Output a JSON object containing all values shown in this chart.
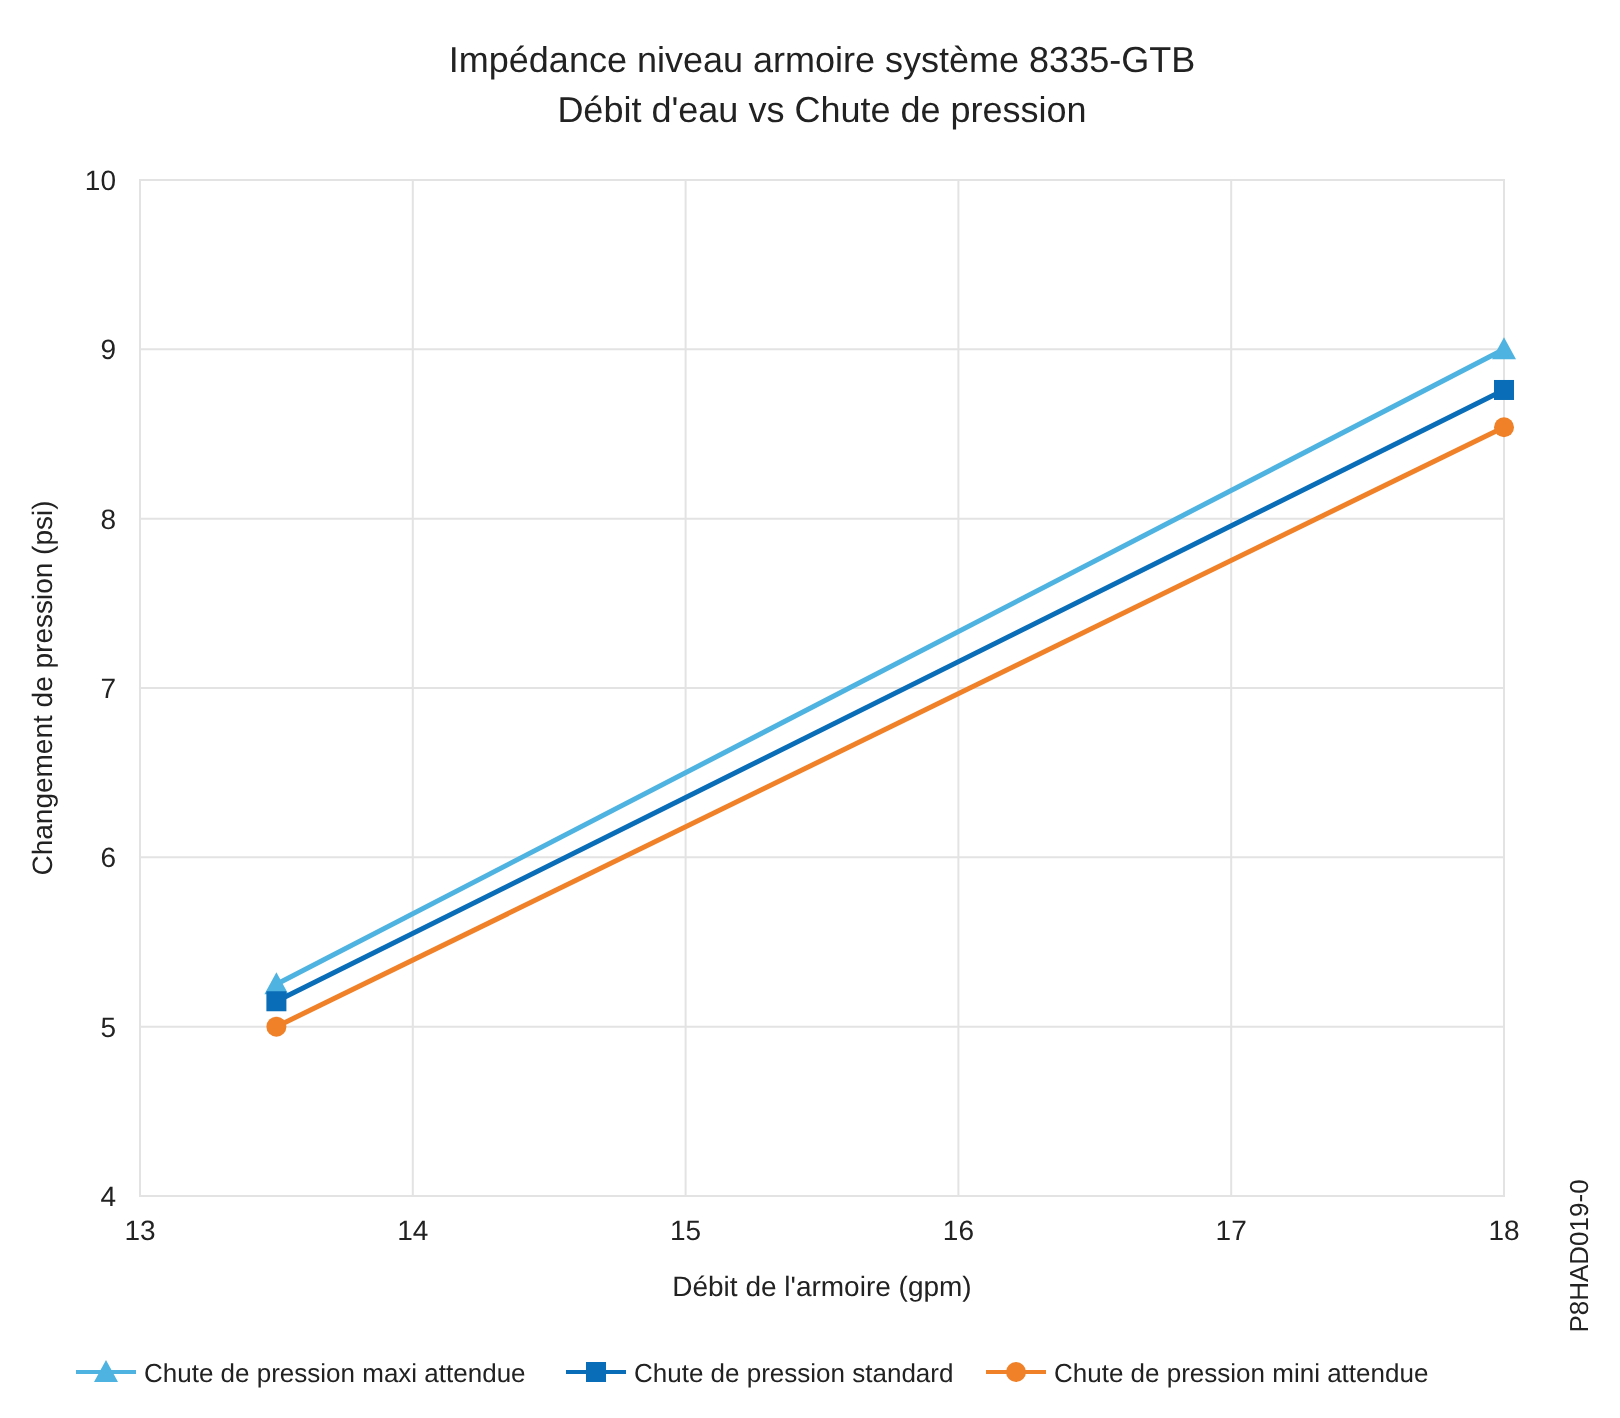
{
  "chart_data": {
    "type": "line",
    "title": "Impédance niveau armoire système 8335-GTB",
    "subtitle": "Débit d'eau vs Chute de pression",
    "xlabel": "Débit de l'armoire (gpm)",
    "ylabel": "Changement de pression (psi)",
    "x": [
      13.5,
      18
    ],
    "xlim": [
      13,
      18
    ],
    "xticks": [
      13,
      14,
      15,
      16,
      17,
      18
    ],
    "ylim": [
      4,
      10
    ],
    "yticks": [
      4,
      5,
      6,
      7,
      8,
      9,
      10
    ],
    "grid": true,
    "legend": "bottom",
    "line_style": "solid",
    "annotations": [
      "P8HAD019-0"
    ],
    "series": [
      {
        "name": "Chute de pression maxi attendue",
        "color": "#4eb3e0",
        "values": [
          5.25,
          9.0
        ],
        "marker": "triangle"
      },
      {
        "name": "Chute de pression standard",
        "color": "#0a6db7",
        "values": [
          5.15,
          8.76
        ],
        "marker": "square"
      },
      {
        "name": "Chute de pression mini attendue",
        "color": "#f08128",
        "values": [
          5.0,
          8.54
        ],
        "marker": "circle"
      }
    ]
  }
}
